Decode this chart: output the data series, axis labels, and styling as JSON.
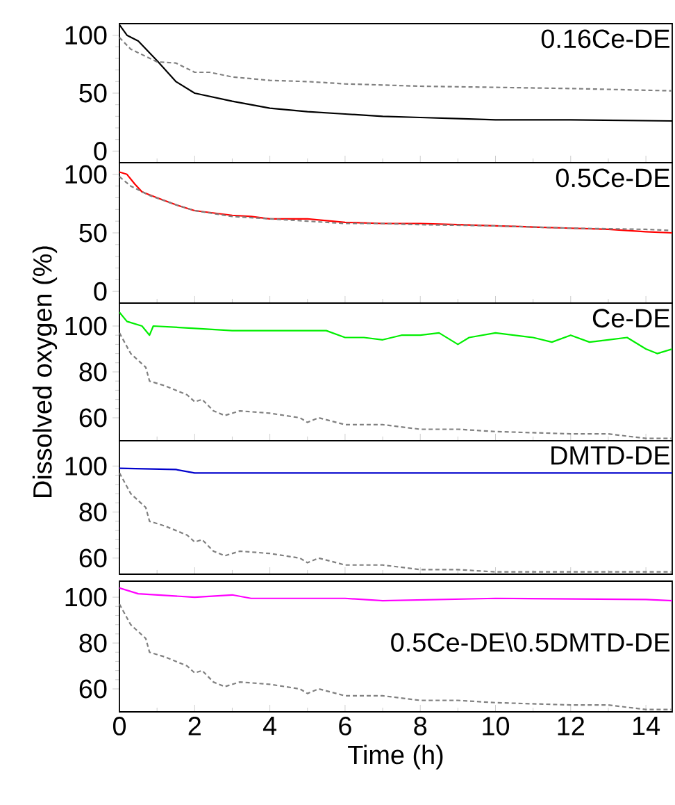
{
  "chart_data": [
    {
      "type": "line",
      "xlim": [
        0,
        14.7
      ],
      "ylim": [
        -10,
        110
      ],
      "xticks": [
        0,
        2,
        4,
        6,
        8,
        10,
        12,
        14
      ],
      "yticks": [
        0,
        50,
        100
      ],
      "tick_labels": "y",
      "grid": false,
      "marker": "none",
      "series": [
        {
          "name": "0.16Ce-DE",
          "color": "#000000",
          "line_style": "solid",
          "x": [
            0,
            0.2,
            0.5,
            1,
            1.5,
            2,
            3,
            4,
            5,
            6,
            7,
            8,
            9,
            10,
            12,
            14.7
          ],
          "values": [
            109,
            100,
            95,
            78,
            60,
            50,
            43,
            37,
            34,
            32,
            30,
            29,
            28,
            27,
            27,
            26
          ]
        },
        {
          "color": "#808080",
          "line_style": "dashed",
          "x": [
            0,
            0.3,
            1,
            1.5,
            2,
            2.4,
            3,
            4,
            5,
            6,
            8,
            10,
            12,
            14.7
          ],
          "values": [
            98,
            88,
            77,
            76,
            68,
            68,
            64,
            61,
            60,
            58,
            56,
            55,
            54,
            52
          ]
        }
      ]
    },
    {
      "type": "line",
      "xlim": [
        0,
        14.7
      ],
      "ylim": [
        -10,
        110
      ],
      "xticks": [
        0,
        2,
        4,
        6,
        8,
        10,
        12,
        14
      ],
      "yticks": [
        0,
        50,
        100
      ],
      "tick_labels": "y",
      "grid": false,
      "marker": "none",
      "series": [
        {
          "name": "0.5Ce-DE",
          "color": "#ff0000",
          "line_style": "solid",
          "x": [
            0,
            0.2,
            0.4,
            0.6,
            1,
            1.5,
            2,
            3,
            3.5,
            4,
            5,
            6,
            7,
            8,
            9,
            10,
            11,
            12,
            13,
            14,
            14.7
          ],
          "values": [
            102,
            100,
            92,
            85,
            80,
            74,
            69,
            65,
            64,
            62,
            62,
            59,
            58,
            58,
            57,
            56,
            55,
            54,
            53,
            51,
            50
          ]
        },
        {
          "color": "#808080",
          "line_style": "dashed",
          "x": [
            0,
            0.3,
            0.8,
            1.5,
            2,
            3,
            4,
            5,
            6,
            7,
            8,
            10,
            12,
            14,
            14.7
          ],
          "values": [
            98,
            90,
            82,
            74,
            69,
            64,
            62,
            60,
            58,
            58,
            57,
            56,
            54,
            53,
            52
          ]
        }
      ]
    },
    {
      "type": "line",
      "xlim": [
        0,
        14.7
      ],
      "ylim": [
        50,
        110
      ],
      "xticks": [
        0,
        2,
        4,
        6,
        8,
        10,
        12,
        14
      ],
      "yticks": [
        60,
        80,
        100
      ],
      "tick_labels": "y",
      "grid": false,
      "marker": "none",
      "ylabel": "Dissolved oxygen (%)",
      "series": [
        {
          "name": "Ce-DE",
          "color": "#00ee00",
          "line_style": "solid",
          "x": [
            0,
            0.2,
            0.6,
            0.8,
            0.9,
            2,
            3,
            5,
            5.5,
            6,
            6.5,
            7,
            7.5,
            8,
            8.5,
            9,
            9.3,
            10,
            11,
            11.5,
            12,
            12.5,
            13,
            13.5,
            14,
            14.3,
            14.7
          ],
          "values": [
            106,
            102,
            100,
            96,
            100,
            99,
            98,
            98,
            98,
            95,
            95,
            94,
            96,
            96,
            97,
            92,
            95,
            97,
            95,
            93,
            96,
            93,
            94,
            95,
            90,
            88,
            90
          ]
        },
        {
          "color": "#808080",
          "line_style": "dashed",
          "x": [
            0,
            0.3,
            0.7,
            0.8,
            1.2,
            1.8,
            2,
            2.2,
            2.5,
            2.8,
            3.2,
            4,
            4.8,
            5,
            5.3,
            6,
            7,
            8,
            9,
            10,
            11,
            12,
            13,
            14,
            14.7
          ],
          "values": [
            97,
            88,
            82,
            76,
            74,
            70,
            67,
            68,
            63,
            61,
            63,
            62,
            60,
            58,
            60,
            57,
            57,
            55,
            55,
            54,
            53.5,
            53,
            53,
            51,
            51
          ]
        }
      ]
    },
    {
      "type": "line",
      "xlim": [
        0,
        14.7
      ],
      "ylim": [
        53,
        111
      ],
      "xticks": [
        0,
        2,
        4,
        6,
        8,
        10,
        12,
        14
      ],
      "yticks": [
        60,
        80,
        100
      ],
      "tick_labels": "y",
      "grid": false,
      "marker": "none",
      "series": [
        {
          "name": "DMTD-DE",
          "color": "#0000cc",
          "line_style": "solid",
          "x": [
            0,
            1.5,
            2,
            14.7
          ],
          "values": [
            99,
            98.5,
            97,
            97
          ]
        },
        {
          "color": "#808080",
          "line_style": "dashed",
          "x": [
            0,
            0.3,
            0.7,
            0.8,
            1.2,
            1.8,
            2,
            2.2,
            2.5,
            2.8,
            3.2,
            4,
            4.8,
            5,
            5.3,
            6,
            7,
            8,
            9,
            10,
            11,
            12,
            13,
            14,
            14.7
          ],
          "values": [
            97,
            88,
            82,
            76,
            74,
            70,
            67,
            68,
            63,
            61,
            63,
            62,
            60,
            58,
            60,
            57,
            57,
            55,
            55,
            54,
            54,
            54,
            54,
            54,
            54
          ]
        }
      ]
    },
    {
      "type": "line",
      "xlim": [
        0,
        14.7
      ],
      "ylim": [
        50,
        107
      ],
      "xticks": [
        0,
        2,
        4,
        6,
        8,
        10,
        12,
        14
      ],
      "yticks": [
        60,
        80,
        100
      ],
      "grid": false,
      "marker": "none",
      "xlabel": "Time (h)",
      "series": [
        {
          "name": "0.5Ce-DE\\0.5DMTD-DE",
          "color": "#ff00ff",
          "line_style": "solid",
          "x": [
            0,
            0.5,
            2,
            3,
            3.5,
            6,
            7,
            10,
            14,
            14.7
          ],
          "values": [
            104,
            101.5,
            100,
            101,
            99.5,
            99.5,
            98.5,
            99.5,
            99,
            98.5
          ]
        },
        {
          "color": "#808080",
          "line_style": "dashed",
          "x": [
            0,
            0.3,
            0.7,
            0.8,
            1.2,
            1.8,
            2,
            2.2,
            2.5,
            2.8,
            3.2,
            4,
            4.8,
            5,
            5.3,
            6,
            7,
            8,
            9,
            10,
            11,
            12,
            13,
            14,
            14.7
          ],
          "values": [
            97,
            88,
            82,
            76,
            74,
            70,
            67,
            68,
            63,
            61,
            63,
            62,
            60,
            58,
            60,
            57,
            57,
            55,
            55,
            54,
            53.5,
            53,
            53,
            51,
            51
          ]
        }
      ]
    }
  ]
}
